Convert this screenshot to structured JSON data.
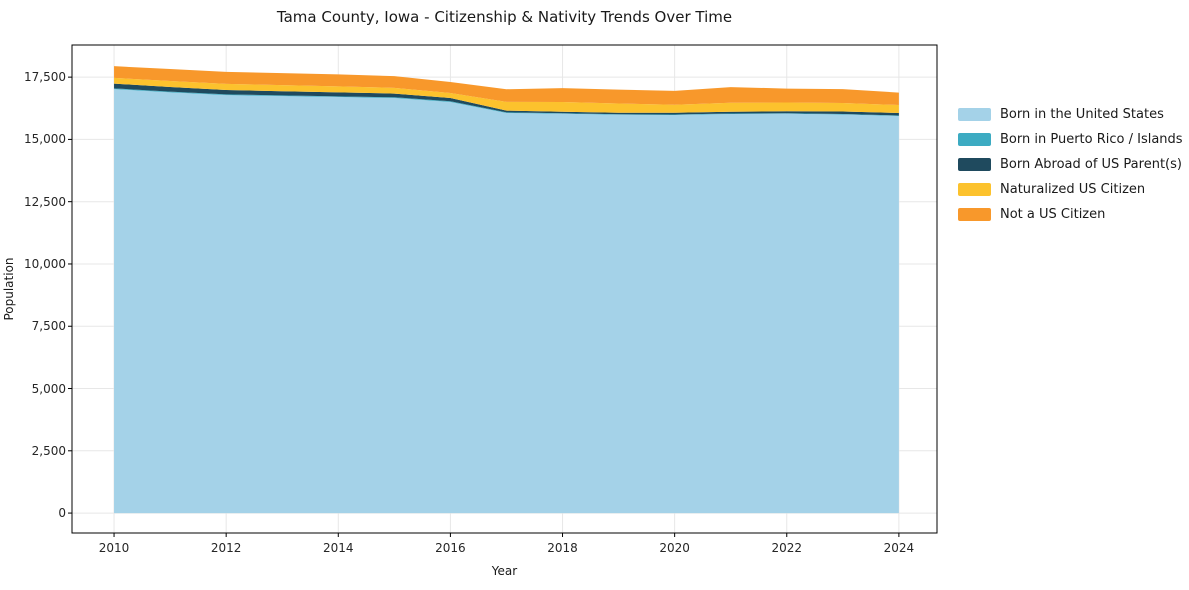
{
  "title": "Tama County, Iowa - Citizenship & Nativity Trends Over Time",
  "chart_data": {
    "type": "area",
    "stacked": true,
    "title": "Tama County, Iowa - Citizenship & Nativity Trends Over Time",
    "xlabel": "Year",
    "ylabel": "Population",
    "grid": true,
    "legend_position": "right-outside",
    "x": [
      2010,
      2011,
      2012,
      2013,
      2014,
      2015,
      2016,
      2017,
      2018,
      2019,
      2020,
      2021,
      2022,
      2023,
      2024
    ],
    "series": [
      {
        "name": "Born in the United States",
        "color": "#a4d2e8",
        "values": [
          17020,
          16890,
          16780,
          16740,
          16700,
          16660,
          16500,
          16060,
          16030,
          15990,
          15980,
          16020,
          16030,
          16000,
          15940
        ]
      },
      {
        "name": "Born in Puerto Rico / Islands",
        "color": "#3cabc2",
        "values": [
          30,
          30,
          30,
          30,
          30,
          30,
          30,
          25,
          20,
          20,
          20,
          20,
          20,
          20,
          20
        ]
      },
      {
        "name": "Born Abroad of US Parent(s)",
        "color": "#1f4a5e",
        "values": [
          190,
          185,
          175,
          165,
          160,
          150,
          135,
          70,
          60,
          60,
          70,
          70,
          80,
          100,
          100
        ]
      },
      {
        "name": "Naturalized US Citizen",
        "color": "#fcc22d",
        "values": [
          230,
          240,
          245,
          245,
          240,
          230,
          200,
          350,
          390,
          370,
          320,
          360,
          350,
          340,
          320
        ]
      },
      {
        "name": "Not a US Citizen",
        "color": "#f8982b",
        "values": [
          470,
          480,
          480,
          480,
          480,
          470,
          440,
          510,
          560,
          560,
          560,
          630,
          560,
          560,
          500
        ]
      }
    ],
    "x_ticks": [
      2010,
      2012,
      2014,
      2016,
      2018,
      2020,
      2022,
      2024
    ],
    "x_tick_labels": [
      "2010",
      "2012",
      "2014",
      "2016",
      "2018",
      "2020",
      "2022",
      "2024"
    ],
    "y_ticks": [
      0,
      2500,
      5000,
      7500,
      10000,
      12500,
      15000,
      17500
    ],
    "y_tick_labels": [
      "0",
      "2,500",
      "5,000",
      "7,500",
      "10,000",
      "12,500",
      "15,000",
      "17,500"
    ],
    "xlim": [
      2009.25,
      2024.68
    ],
    "ylim": [
      -800,
      18790
    ]
  },
  "style": {
    "grid_color": "#e7e7e7",
    "spine_color": "#000000",
    "tick_color": "#262626",
    "background": "#ffffff"
  }
}
